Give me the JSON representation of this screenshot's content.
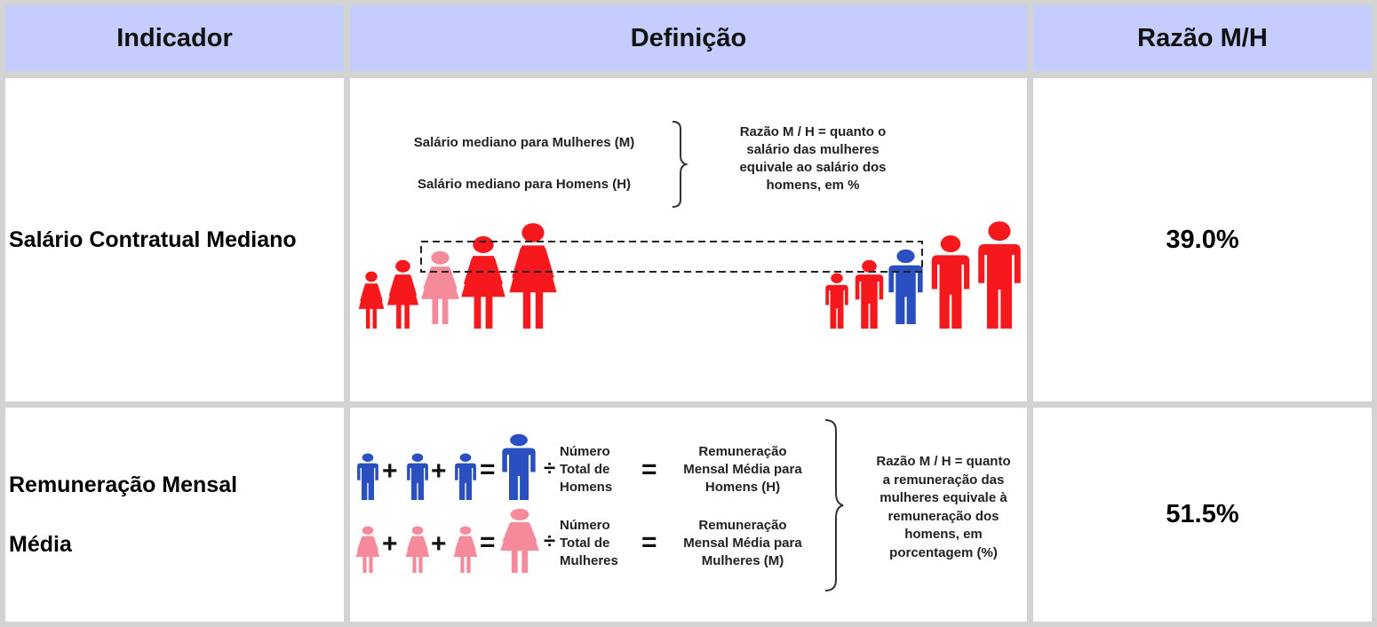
{
  "table": {
    "headers": [
      "Indicador",
      "Definição",
      "Razão M/H"
    ],
    "rows": [
      {
        "indicator": "Salário Contratual Mediano",
        "definition": {
          "line_women": "Salário mediano para Mulheres (M)",
          "line_men": "Salário mediano para Homens (H)",
          "ratio_text": [
            "Razão M / H = quanto o",
            "salário das mulheres",
            "equivale ao salário dos",
            "homens, em %"
          ]
        },
        "ratio": "39.0%"
      },
      {
        "indicator_lines": [
          "Remuneração Mensal",
          "Média"
        ],
        "definition": {
          "men_divisor": [
            "Número",
            "Total de",
            "Homens"
          ],
          "men_result": [
            "Remuneração",
            "Mensal Média para",
            "Homens (H)"
          ],
          "women_divisor": [
            "Número",
            "Total de",
            "Mulheres"
          ],
          "women_result": [
            "Remuneração",
            "Mensal Média para",
            "Mulheres (M)"
          ],
          "ratio_text": [
            "Razão M / H = quanto",
            "a remuneração das",
            "mulheres equivale à",
            "remuneração dos",
            "homens, em",
            "porcentagem (%)"
          ],
          "plus": "+",
          "equals": "=",
          "divide": "÷"
        },
        "ratio": "51.5%"
      }
    ]
  },
  "colors": {
    "header_bg": "#c4cdfd",
    "red": "#f5191e",
    "pink": "#f48a9a",
    "blue": "#2a4fc0",
    "grid": "#d3d3d3"
  },
  "icons": [
    "person-female-icon",
    "person-male-icon"
  ]
}
